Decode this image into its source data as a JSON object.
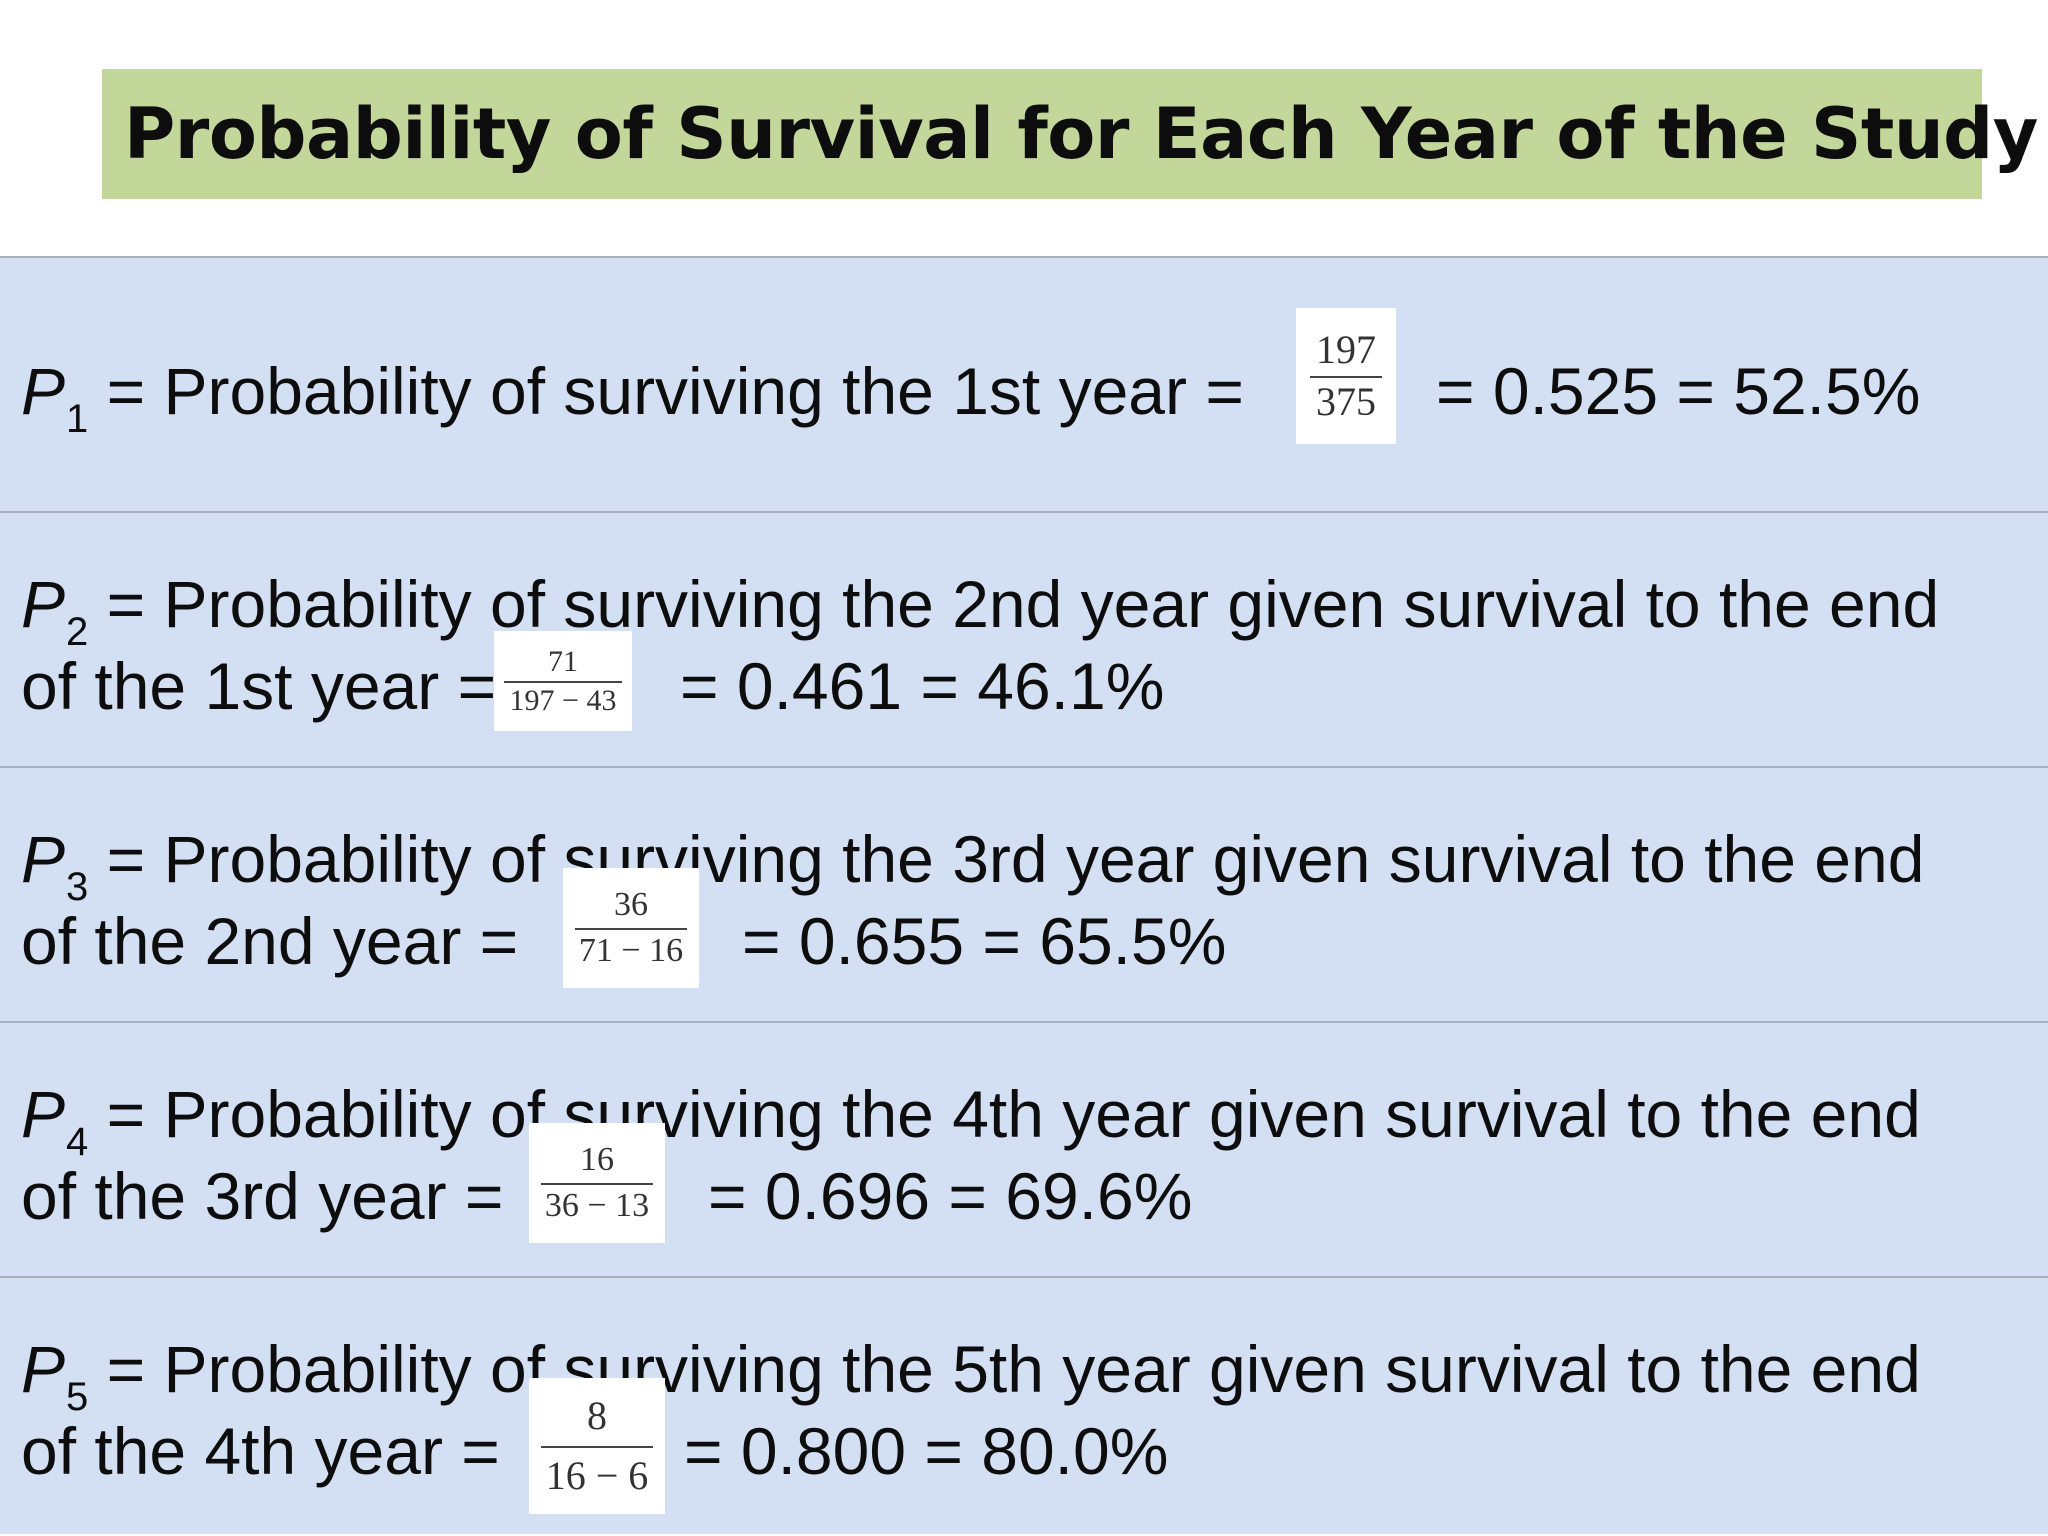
{
  "title": "Probability of Survival for Each Year of the Study",
  "rows": [
    {
      "symbol": "P",
      "sub": "1",
      "line1": "= Probability of surviving the 1st year =",
      "line2": "",
      "num": "197",
      "den": "375",
      "result": "= 0.525 = 52.5%"
    },
    {
      "symbol": "P",
      "sub": "2",
      "line1": "= Probability of surviving the 2nd year given survival to the end",
      "line2": "of the 1st year =",
      "num": "71",
      "den": "197 − 43",
      "result": "= 0.461 = 46.1%"
    },
    {
      "symbol": "P",
      "sub": "3",
      "line1": "= Probability of surviving the 3rd year given survival to the end",
      "line2": "of the 2nd year =",
      "num": "36",
      "den": "71 − 16",
      "result": "= 0.655 = 65.5%"
    },
    {
      "symbol": "P",
      "sub": "4",
      "line1": "= Probability of surviving the 4th year given survival to the end",
      "line2": "of the 3rd year =",
      "num": "16",
      "den": "36 − 13",
      "result": "= 0.696 = 69.6%"
    },
    {
      "symbol": "P",
      "sub": "5",
      "line1": "= Probability of surviving the 5th year given survival to the end",
      "line2": "of the 4th year =",
      "num": "8",
      "den": "16 − 6",
      "result": "= 0.800 = 80.0%"
    }
  ],
  "colors": {
    "title_bg": "#c4d79b",
    "row_bg": "#d3dff2",
    "divider": "#a6b0bf"
  }
}
